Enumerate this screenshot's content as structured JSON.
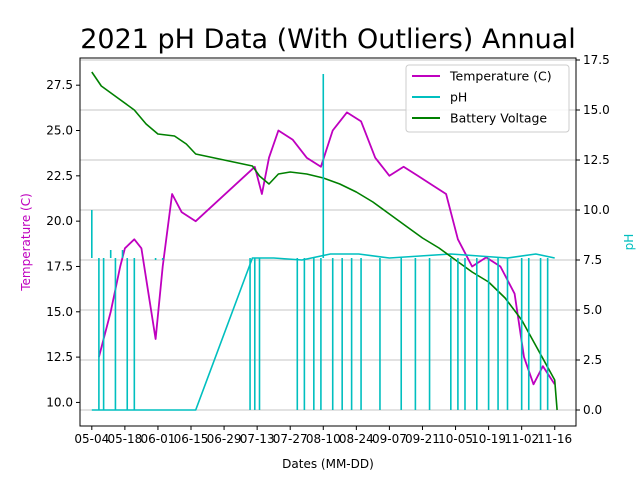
{
  "chart_data": {
    "type": "line",
    "title": "2021 pH Data (With Outliers) Annual",
    "xlabel": "Dates (MM-DD)",
    "ylabel_left": "Temperature (C)",
    "ylabel_right": "pH",
    "xlim": [
      "2021-04-29",
      "2021-11-25"
    ],
    "ylim_left": [
      8.7,
      29.0
    ],
    "ylim_right": [
      -0.8,
      17.6
    ],
    "x_ticks": [
      "05-04",
      "05-18",
      "06-01",
      "06-15",
      "06-29",
      "07-13",
      "07-27",
      "08-10",
      "08-24",
      "09-07",
      "09-21",
      "10-05",
      "10-19",
      "11-02",
      "11-16"
    ],
    "y_ticks_left": [
      "10.0",
      "12.5",
      "15.0",
      "17.5",
      "20.0",
      "22.5",
      "25.0",
      "27.5"
    ],
    "y_ticks_right": [
      "0.0",
      "2.5",
      "5.0",
      "7.5",
      "10.0",
      "12.5",
      "15.0",
      "17.5"
    ],
    "grid": {
      "y_right": true,
      "x": false
    },
    "legend_position": "upper right",
    "colors": {
      "temperature": "#bf00bf",
      "ph": "#00bfbf",
      "battery": "#008000"
    },
    "series": [
      {
        "name": "Temperature (C)",
        "axis": "left",
        "x": [
          "2021-05-07",
          "2021-05-12",
          "2021-05-16",
          "2021-05-18",
          "2021-05-22",
          "2021-05-25",
          "2021-05-28",
          "2021-05-31",
          "2021-06-03",
          "2021-06-07",
          "2021-06-11",
          "2021-06-17",
          "2021-07-12",
          "2021-07-15",
          "2021-07-18",
          "2021-07-22",
          "2021-07-28",
          "2021-08-03",
          "2021-08-09",
          "2021-08-14",
          "2021-08-20",
          "2021-08-26",
          "2021-09-01",
          "2021-09-07",
          "2021-09-13",
          "2021-09-19",
          "2021-09-25",
          "2021-10-01",
          "2021-10-06",
          "2021-10-12",
          "2021-10-18",
          "2021-10-24",
          "2021-10-30",
          "2021-11-03",
          "2021-11-07",
          "2021-11-11",
          "2021-11-16"
        ],
        "values": [
          12.5,
          15.0,
          17.5,
          18.5,
          19.0,
          18.5,
          16.0,
          13.5,
          17.5,
          21.5,
          20.5,
          20.0,
          23.0,
          21.5,
          23.5,
          25.0,
          24.5,
          23.5,
          23.0,
          25.0,
          26.0,
          25.5,
          23.5,
          22.5,
          23.0,
          22.5,
          22.0,
          21.5,
          19.0,
          17.5,
          18.0,
          17.5,
          16.0,
          12.5,
          11.0,
          12.0,
          11.0
        ]
      },
      {
        "name": "pH",
        "axis": "right",
        "x": [
          "2021-05-04",
          "2021-05-05",
          "2021-06-03",
          "2021-06-17",
          "2021-07-11",
          "2021-07-20",
          "2021-08-01",
          "2021-08-13",
          "2021-08-25",
          "2021-09-07",
          "2021-09-20",
          "2021-10-03",
          "2021-10-15",
          "2021-10-27",
          "2021-11-08",
          "2021-11-16"
        ],
        "values": [
          0.0,
          0.0,
          0.0,
          0.0,
          7.6,
          7.6,
          7.5,
          7.8,
          7.8,
          7.6,
          7.7,
          7.8,
          7.7,
          7.6,
          7.8,
          7.6
        ]
      },
      {
        "name": "Battery Voltage",
        "axis": "right",
        "x": [
          "2021-05-04",
          "2021-05-08",
          "2021-05-15",
          "2021-05-22",
          "2021-05-27",
          "2021-06-01",
          "2021-06-08",
          "2021-06-13",
          "2021-06-17",
          "2021-07-11",
          "2021-07-14",
          "2021-07-18",
          "2021-07-22",
          "2021-07-27",
          "2021-08-03",
          "2021-08-10",
          "2021-08-17",
          "2021-08-24",
          "2021-08-31",
          "2021-09-07",
          "2021-09-14",
          "2021-09-21",
          "2021-09-28",
          "2021-10-05",
          "2021-10-12",
          "2021-10-19",
          "2021-10-26",
          "2021-11-02",
          "2021-11-09",
          "2021-11-16",
          "2021-11-17"
        ],
        "values": [
          16.9,
          16.2,
          15.6,
          15.0,
          14.3,
          13.8,
          13.7,
          13.3,
          12.8,
          12.2,
          11.7,
          11.3,
          11.8,
          11.9,
          11.8,
          11.6,
          11.3,
          10.9,
          10.4,
          9.8,
          9.2,
          8.6,
          8.1,
          7.5,
          6.9,
          6.4,
          5.6,
          4.5,
          3.0,
          1.5,
          0.0
        ]
      }
    ],
    "ph_outlier_spikes": {
      "x": [
        "2021-05-04",
        "2021-05-07",
        "2021-05-09",
        "2021-05-12",
        "2021-05-14",
        "2021-05-17",
        "2021-05-19",
        "2021-05-22",
        "2021-05-31",
        "2021-06-03",
        "2021-07-10",
        "2021-07-12",
        "2021-07-14",
        "2021-07-30",
        "2021-08-02",
        "2021-08-06",
        "2021-08-09",
        "2021-08-10",
        "2021-08-14",
        "2021-08-18",
        "2021-08-22",
        "2021-08-26",
        "2021-09-03",
        "2021-09-12",
        "2021-09-18",
        "2021-09-24",
        "2021-10-03",
        "2021-10-06",
        "2021-10-09",
        "2021-10-14",
        "2021-10-19",
        "2021-10-23",
        "2021-10-27",
        "2021-11-02",
        "2021-11-05",
        "2021-11-10",
        "2021-11-13"
      ],
      "values": [
        10.0,
        0.0,
        0.0,
        8.0,
        0.0,
        8.0,
        0.0,
        0.0,
        7.5,
        7.5,
        0.0,
        0.0,
        0.0,
        0.0,
        0.0,
        0.0,
        0.0,
        16.8,
        0.0,
        0.0,
        0.0,
        0.0,
        0.0,
        0.0,
        0.0,
        0.0,
        0.0,
        0.0,
        0.0,
        0.0,
        0.0,
        0.0,
        0.0,
        0.0,
        0.0,
        0.0,
        0.0
      ]
    }
  }
}
